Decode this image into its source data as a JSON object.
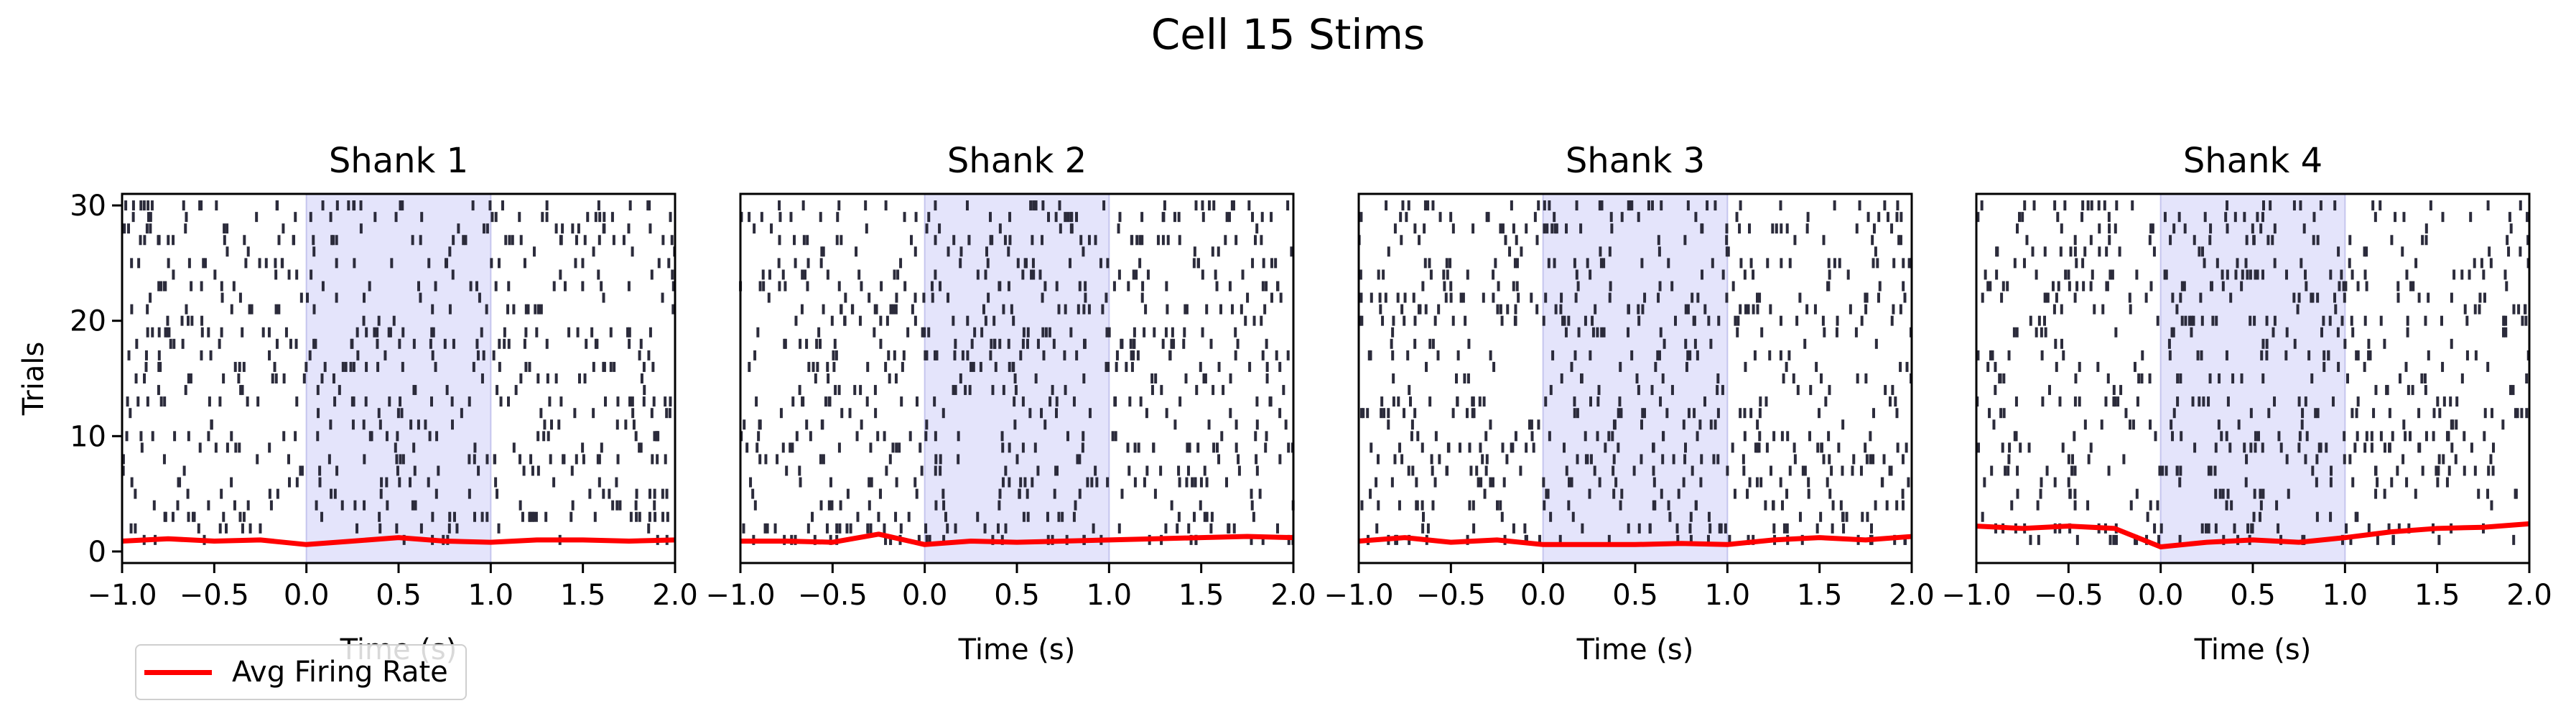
{
  "figure": {
    "title": "Cell 15 Stims",
    "legend_label": "Avg Firing Rate"
  },
  "colors": {
    "spike": "#2b2b3b",
    "stim_shade": "#e4e4fb",
    "stim_edge": "#c5c5ee",
    "firing_rate": "#ff0000"
  },
  "chart_data": [
    {
      "type": "raster",
      "title": "Shank 1",
      "xlabel": "Time (s)",
      "ylabel": "Trials",
      "xlim": [
        -1.0,
        2.0
      ],
      "ylim": [
        -1,
        31
      ],
      "xticks": [
        "−1.0",
        "−0.5",
        "0.0",
        "0.5",
        "1.0",
        "1.5",
        "2.0"
      ],
      "yticks": [
        "0",
        "10",
        "20",
        "30"
      ],
      "stim_window": [
        0.0,
        1.0
      ],
      "n_trials": 30,
      "series": [
        {
          "name": "Avg Firing Rate",
          "x": [
            -1.0,
            -0.75,
            -0.5,
            -0.25,
            0.0,
            0.25,
            0.5,
            0.75,
            1.0,
            1.25,
            1.5,
            1.75,
            2.0
          ],
          "y": [
            0.9,
            1.1,
            0.9,
            1.0,
            0.6,
            0.9,
            1.2,
            0.9,
            0.8,
            1.0,
            1.0,
            0.9,
            1.0
          ]
        }
      ]
    },
    {
      "type": "raster",
      "title": "Shank 2",
      "xlabel": "Time (s)",
      "ylabel": "",
      "xlim": [
        -1.0,
        2.0
      ],
      "ylim": [
        -1,
        31
      ],
      "xticks": [
        "−1.0",
        "−0.5",
        "0.0",
        "0.5",
        "1.0",
        "1.5",
        "2.0"
      ],
      "yticks": [],
      "stim_window": [
        0.0,
        1.0
      ],
      "n_trials": 30,
      "series": [
        {
          "name": "Avg Firing Rate",
          "x": [
            -1.0,
            -0.75,
            -0.5,
            -0.25,
            0.0,
            0.25,
            0.5,
            0.75,
            1.0,
            1.25,
            1.5,
            1.75,
            2.0
          ],
          "y": [
            0.9,
            0.9,
            0.8,
            1.5,
            0.6,
            0.9,
            0.8,
            0.9,
            1.0,
            1.1,
            1.2,
            1.3,
            1.2
          ]
        }
      ]
    },
    {
      "type": "raster",
      "title": "Shank 3",
      "xlabel": "Time (s)",
      "ylabel": "",
      "xlim": [
        -1.0,
        2.0
      ],
      "ylim": [
        -1,
        31
      ],
      "xticks": [
        "−1.0",
        "−0.5",
        "0.0",
        "0.5",
        "1.0",
        "1.5",
        "2.0"
      ],
      "yticks": [],
      "stim_window": [
        0.0,
        1.0
      ],
      "n_trials": 30,
      "series": [
        {
          "name": "Avg Firing Rate",
          "x": [
            -1.0,
            -0.75,
            -0.5,
            -0.25,
            0.0,
            0.25,
            0.5,
            0.75,
            1.0,
            1.25,
            1.5,
            1.75,
            2.0
          ],
          "y": [
            0.9,
            1.2,
            0.8,
            1.0,
            0.6,
            0.6,
            0.6,
            0.7,
            0.6,
            1.0,
            1.2,
            1.0,
            1.3
          ]
        }
      ]
    },
    {
      "type": "raster",
      "title": "Shank 4",
      "xlabel": "Time (s)",
      "ylabel": "",
      "xlim": [
        -1.0,
        2.0
      ],
      "ylim": [
        -1,
        31
      ],
      "xticks": [
        "−1.0",
        "−0.5",
        "0.0",
        "0.5",
        "1.0",
        "1.5",
        "2.0"
      ],
      "yticks": [],
      "stim_window": [
        0.0,
        1.0
      ],
      "n_trials": 30,
      "series": [
        {
          "name": "Avg Firing Rate",
          "x": [
            -1.0,
            -0.75,
            -0.5,
            -0.25,
            0.0,
            0.25,
            0.5,
            0.75,
            1.0,
            1.25,
            1.5,
            1.75,
            2.0
          ],
          "y": [
            2.2,
            2.0,
            2.2,
            2.0,
            0.4,
            0.8,
            1.0,
            0.8,
            1.2,
            1.7,
            2.0,
            2.1,
            2.4
          ]
        }
      ]
    }
  ]
}
